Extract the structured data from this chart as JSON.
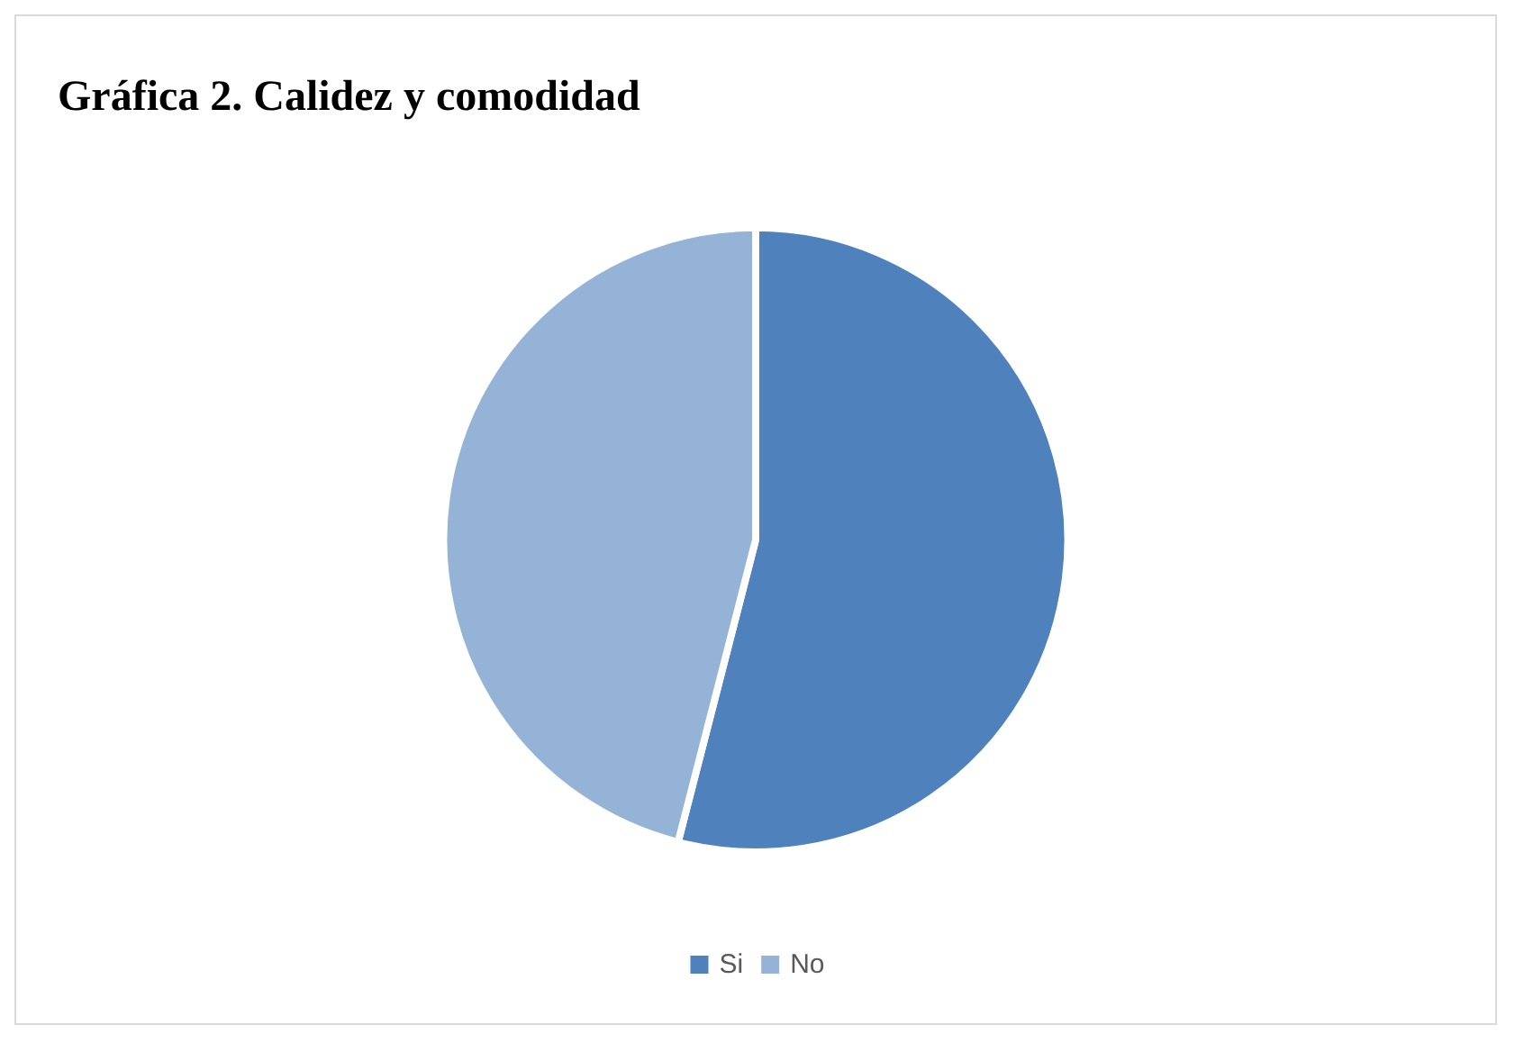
{
  "chart_data": {
    "type": "pie",
    "title": "Gráfica 2. Calidez y comodidad",
    "categories": [
      "Si",
      "No"
    ],
    "values": [
      54,
      46
    ],
    "colors": [
      "#4f81bd",
      "#95b3d7"
    ],
    "legend": "bottom"
  }
}
